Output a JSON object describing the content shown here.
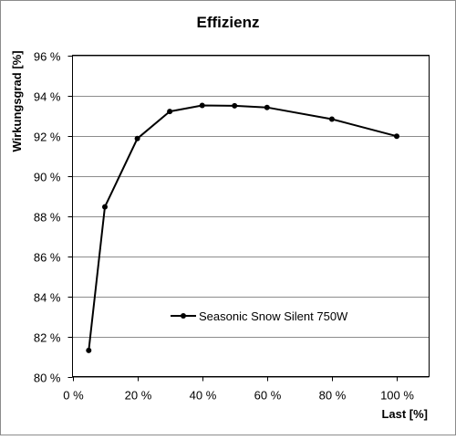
{
  "chart_data": {
    "type": "line",
    "title": "Effizienz",
    "xlabel": "Last [%]",
    "ylabel": "Wirkungsgrad [%]",
    "xlim": [
      0,
      110
    ],
    "ylim": [
      80,
      96
    ],
    "x_ticks": [
      0,
      20,
      40,
      60,
      80,
      100
    ],
    "x_tick_labels": [
      "0 %",
      "20 %",
      "40 %",
      "60 %",
      "80 %",
      "100 %"
    ],
    "y_ticks": [
      80,
      82,
      84,
      86,
      88,
      90,
      92,
      94,
      96
    ],
    "y_tick_labels": [
      "80 %",
      "82 %",
      "84 %",
      "86 %",
      "88 %",
      "90 %",
      "92 %",
      "94 %",
      "96 %"
    ],
    "grid": "horizontal",
    "legend_position": "inside-bottom-right",
    "series": [
      {
        "name": "Seasonic Snow Silent 750W",
        "color": "#000000",
        "x": [
          5,
          10,
          20,
          30,
          40,
          50,
          60,
          80,
          100
        ],
        "y": [
          81.3,
          88.45,
          91.85,
          93.2,
          93.5,
          93.48,
          93.4,
          92.82,
          91.97
        ]
      }
    ]
  }
}
